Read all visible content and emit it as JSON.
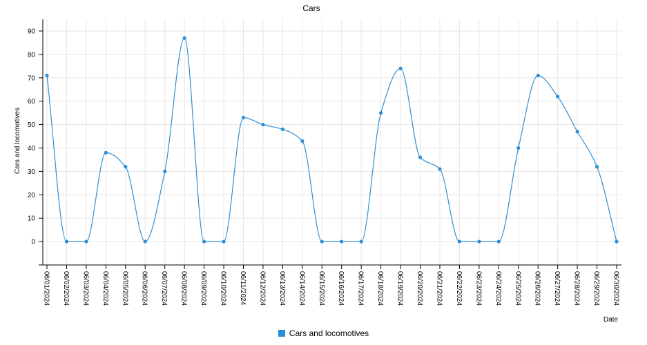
{
  "chart_data": {
    "type": "line",
    "title": "Cars",
    "xlabel": "Date",
    "ylabel": "Cars and locomotives",
    "ylim": [
      -10,
      95
    ],
    "yticks": [
      0,
      10,
      20,
      30,
      40,
      50,
      60,
      70,
      80,
      90
    ],
    "grid": true,
    "legend_position": "bottom",
    "categories": [
      "06/01/2024",
      "06/02/2024",
      "06/03/2024",
      "06/04/2024",
      "06/05/2024",
      "06/06/2024",
      "06/07/2024",
      "06/08/2024",
      "06/09/2024",
      "06/10/2024",
      "06/11/2024",
      "06/12/2024",
      "06/13/2024",
      "06/14/2024",
      "06/15/2024",
      "06/16/2024",
      "06/17/2024",
      "06/18/2024",
      "06/19/2024",
      "06/20/2024",
      "06/21/2024",
      "06/22/2024",
      "06/23/2024",
      "06/24/2024",
      "06/25/2024",
      "06/26/2024",
      "06/27/2024",
      "06/28/2024",
      "06/29/2024",
      "06/30/2024"
    ],
    "series": [
      {
        "name": "Cars and locomotives",
        "color": "#2b8fd8",
        "values": [
          71,
          0,
          0,
          38,
          32,
          0,
          30,
          87,
          0,
          0,
          53,
          50,
          48,
          43,
          0,
          0,
          0,
          55,
          74,
          36,
          31,
          0,
          0,
          0,
          40,
          71,
          62,
          47,
          32,
          0
        ]
      }
    ]
  }
}
